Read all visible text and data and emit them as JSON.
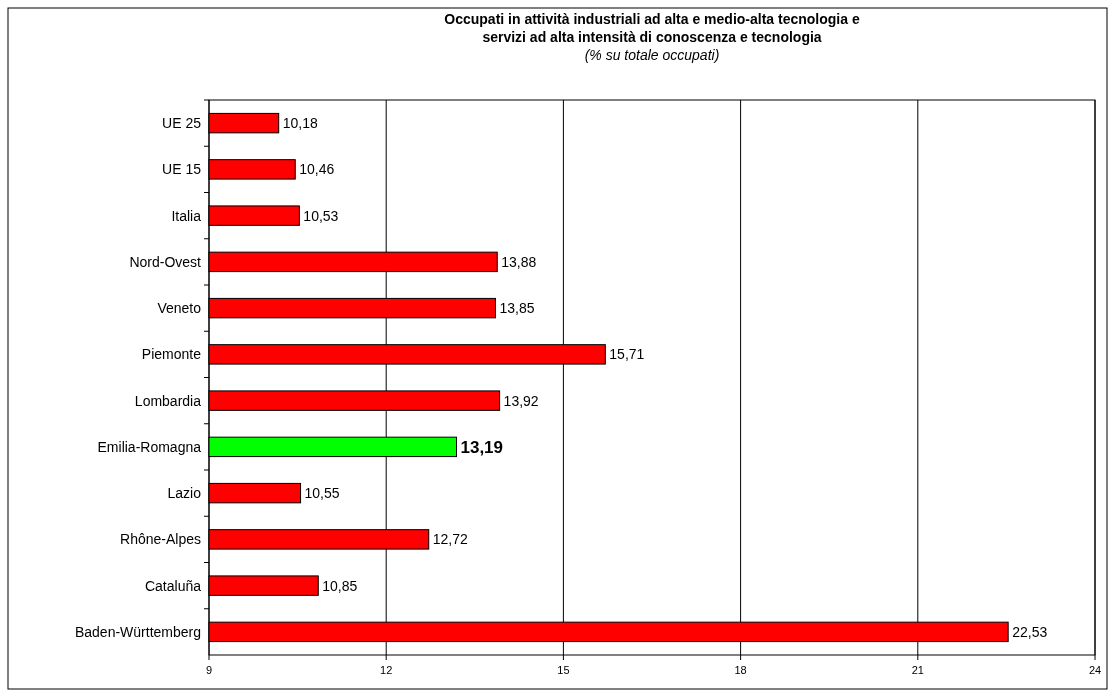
{
  "chart_data": {
    "type": "bar",
    "orientation": "horizontal",
    "title": "Occupati in attività industriali ad alta e medio-alta tecnologia e\nservizi ad alta intensità di conoscenza e tecnologia",
    "subtitle": "(% su totale occupati)",
    "categories": [
      "UE 25",
      "UE 15",
      "Italia",
      "Nord-Ovest",
      "Veneto",
      "Piemonte",
      "Lombardia",
      "Emilia-Romagna",
      "Lazio",
      "Rhône-Alpes",
      "Cataluña",
      "Baden-Württemberg"
    ],
    "values": [
      10.18,
      10.46,
      10.53,
      13.88,
      13.85,
      15.71,
      13.92,
      13.19,
      10.55,
      12.72,
      10.85,
      22.53
    ],
    "value_labels": [
      "10,18",
      "10,46",
      "10,53",
      "13,88",
      "13,85",
      "15,71",
      "13,92",
      "13,19",
      "10,55",
      "12,72",
      "10,85",
      "22,53"
    ],
    "colors": [
      "#ff0000",
      "#ff0000",
      "#ff0000",
      "#ff0000",
      "#ff0000",
      "#ff0000",
      "#ff0000",
      "#00ff00",
      "#ff0000",
      "#ff0000",
      "#ff0000",
      "#ff0000"
    ],
    "xlim": [
      9,
      24
    ],
    "xticks": [
      9,
      12,
      15,
      18,
      21,
      24
    ],
    "grid": "x"
  }
}
